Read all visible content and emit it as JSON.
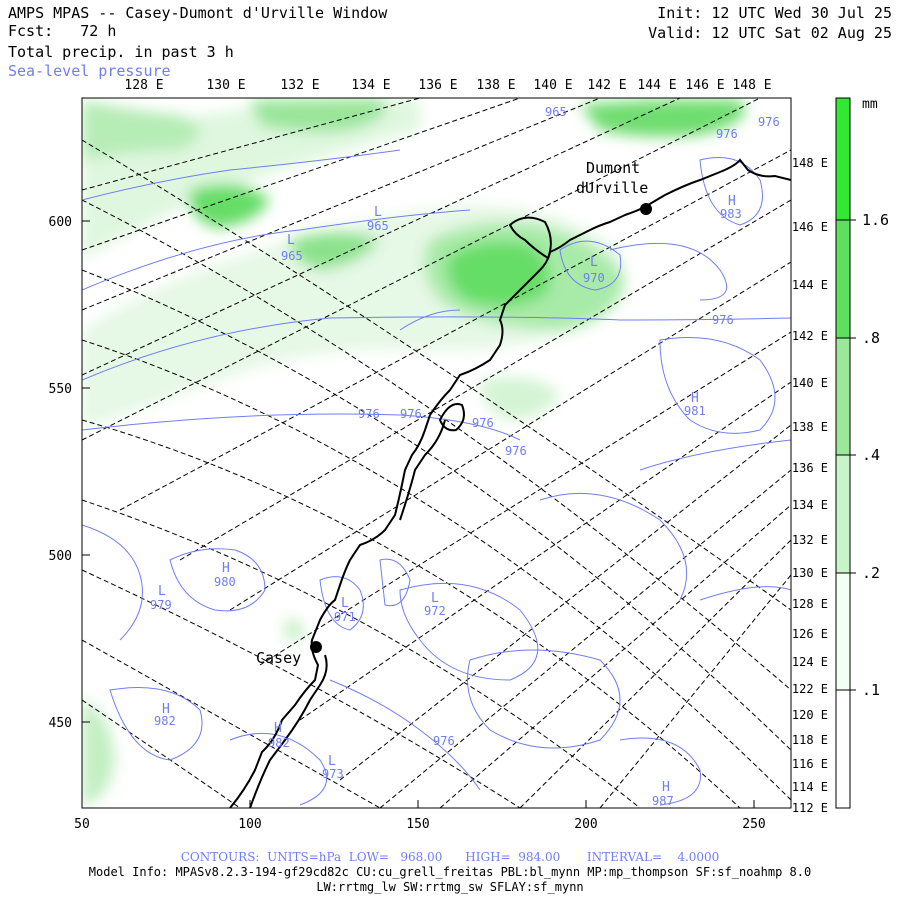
{
  "header": {
    "title": "AMPS MPAS -- Casey-Dumont d'Urville Window",
    "forecast_label": "Fcst:",
    "forecast_value": "72 h",
    "field": "Total precip. in past 3 h",
    "overlay": "Sea-level pressure",
    "init": "Init: 12 UTC Wed 30 Jul 25",
    "valid": "Valid: 12 UTC Sat 02 Aug 25"
  },
  "axes": {
    "x_ticks": [
      "50",
      "100",
      "150",
      "200",
      "250"
    ],
    "y_ticks": [
      "450",
      "500",
      "550",
      "600"
    ],
    "top_lon_labels": [
      "128 E",
      "130 E",
      "132 E",
      "134 E",
      "136 E",
      "138 E",
      "140 E",
      "142 E",
      "144 E",
      "146 E",
      "148 E"
    ],
    "right_lon_labels": [
      "148 E",
      "146 E",
      "144 E",
      "142 E",
      "140 E",
      "138 E",
      "136 E",
      "134 E",
      "132 E",
      "130 E",
      "128 E",
      "126 E",
      "124 E",
      "122 E",
      "120 E",
      "118 E",
      "116 E",
      "114 E",
      "112 E"
    ]
  },
  "stations": [
    {
      "name": "Casey"
    },
    {
      "name_line1": "Dumont",
      "name_line2": "dUrville"
    }
  ],
  "pressure_labels": [
    "965",
    "976",
    "965",
    "965",
    "970",
    "976",
    "983",
    "976",
    "976",
    "976",
    "976",
    "981",
    "976",
    "980",
    "979",
    "971",
    "972",
    "982",
    "982",
    "973",
    "976",
    "987"
  ],
  "pressure_highs_lows": [
    "L",
    "L",
    "L",
    "H",
    "H",
    "L",
    "H",
    "L",
    "L",
    "H",
    "H",
    "L",
    "H"
  ],
  "colorbar": {
    "unit": "mm",
    "levels": [
      ".1",
      ".2",
      ".4",
      ".8",
      "1.6"
    ],
    "colors": [
      "#f2fff2",
      "#c8f5c8",
      "#9be89b",
      "#5ee05e",
      "#33e833"
    ]
  },
  "footer": {
    "contours": "CONTOURS:  UNITS=hPa  LOW=   968.00      HIGH=  984.00       INTERVAL=    4.0000",
    "model_info": "Model Info: MPASv8.2.3-194-gf29cd82c CU:cu_grell_freitas PBL:bl_mynn MP:mp_thompson SF:sf_noahmp 8.0",
    "model_info2": "LW:rrtmg_lw SW:rrtmg_sw SFLAY:sf_mynn"
  }
}
